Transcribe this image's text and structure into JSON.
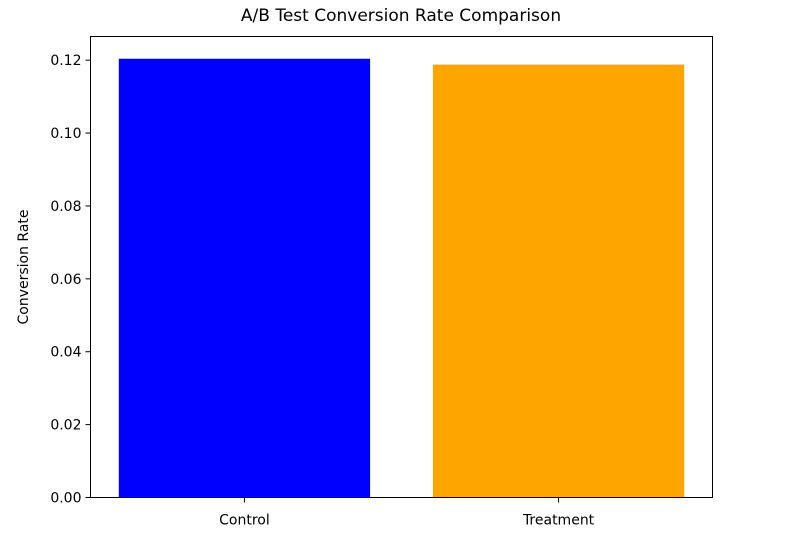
{
  "chart_data": {
    "type": "bar",
    "title": "A/B Test Conversion Rate Comparison",
    "xlabel": "",
    "ylabel": "Conversion Rate",
    "categories": [
      "Control",
      "Treatment"
    ],
    "values": [
      0.1204,
      0.1188
    ],
    "colors": [
      "#0000ff",
      "#ffa500"
    ],
    "ylim": [
      0,
      0.1265
    ],
    "yticks": [
      0.0,
      0.02,
      0.04,
      0.06,
      0.08,
      0.1,
      0.12
    ],
    "ytick_labels": [
      "0.00",
      "0.02",
      "0.04",
      "0.06",
      "0.08",
      "0.10",
      "0.12"
    ],
    "grid": false,
    "legend": "none"
  }
}
